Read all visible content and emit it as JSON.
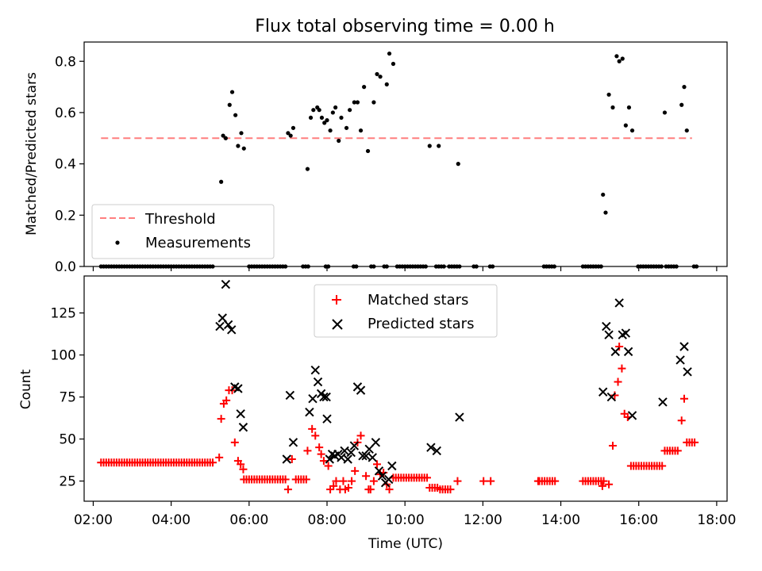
{
  "chart_data": [
    {
      "type": "scatter",
      "title": "Flux total observing time = 0.00 h",
      "xlabel": "",
      "ylabel": "Matched/Predicted stars",
      "xlim": [
        "01:46",
        "18:16"
      ],
      "ylim": [
        0,
        0.875
      ],
      "yticks": [
        0.0,
        0.2,
        0.4,
        0.6,
        0.8
      ],
      "ytick_labels": [
        "0.0",
        "0.2",
        "0.4",
        "0.6",
        "0.8"
      ],
      "legend": {
        "placement": "lower-left",
        "entries": [
          "Threshold",
          "Measurements"
        ]
      },
      "threshold": {
        "name": "Threshold",
        "y": 0.5,
        "x_start": "02:12",
        "x_end": "17:22",
        "color": "#ff7f7f"
      },
      "measurements": {
        "name": "Measurements",
        "color": "#000000",
        "points": [
          [
            "05:17",
            0.33
          ],
          [
            "05:20",
            0.51
          ],
          [
            "05:24",
            0.5
          ],
          [
            "05:30",
            0.63
          ],
          [
            "05:34",
            0.68
          ],
          [
            "05:39",
            0.59
          ],
          [
            "05:43",
            0.47
          ],
          [
            "05:48",
            0.52
          ],
          [
            "05:52",
            0.46
          ],
          [
            "07:00",
            0.52
          ],
          [
            "07:04",
            0.51
          ],
          [
            "07:08",
            0.54
          ],
          [
            "07:30",
            0.38
          ],
          [
            "07:35",
            0.58
          ],
          [
            "07:39",
            0.61
          ],
          [
            "07:45",
            0.62
          ],
          [
            "07:48",
            0.61
          ],
          [
            "07:52",
            0.58
          ],
          [
            "07:56",
            0.56
          ],
          [
            "08:00",
            0.57
          ],
          [
            "08:05",
            0.53
          ],
          [
            "08:09",
            0.6
          ],
          [
            "08:13",
            0.62
          ],
          [
            "08:18",
            0.49
          ],
          [
            "08:22",
            0.58
          ],
          [
            "08:30",
            0.54
          ],
          [
            "08:35",
            0.61
          ],
          [
            "08:42",
            0.64
          ],
          [
            "08:47",
            0.64
          ],
          [
            "08:52",
            0.53
          ],
          [
            "08:57",
            0.7
          ],
          [
            "09:03",
            0.45
          ],
          [
            "09:12",
            0.64
          ],
          [
            "09:17",
            0.75
          ],
          [
            "09:22",
            0.74
          ],
          [
            "09:32",
            0.71
          ],
          [
            "09:36",
            0.83
          ],
          [
            "09:42",
            0.79
          ],
          [
            "10:38",
            0.47
          ],
          [
            "10:52",
            0.47
          ],
          [
            "11:22",
            0.4
          ],
          [
            "15:05",
            0.28
          ],
          [
            "15:09",
            0.21
          ],
          [
            "15:14",
            0.67
          ],
          [
            "15:20",
            0.62
          ],
          [
            "15:26",
            0.82
          ],
          [
            "15:30",
            0.8
          ],
          [
            "15:35",
            0.81
          ],
          [
            "15:40",
            0.55
          ],
          [
            "15:45",
            0.62
          ],
          [
            "15:50",
            0.53
          ],
          [
            "16:40",
            0.6
          ],
          [
            "17:06",
            0.63
          ],
          [
            "17:10",
            0.7
          ],
          [
            "17:14",
            0.53
          ]
        ],
        "zero_ranges": [
          [
            "02:12",
            "05:05"
          ],
          [
            "06:00",
            "06:58"
          ],
          [
            "07:23",
            "07:31"
          ],
          [
            "07:58",
            "08:05"
          ],
          [
            "08:41",
            "08:45"
          ],
          [
            "09:08",
            "09:12"
          ],
          [
            "09:28",
            "09:32"
          ],
          [
            "09:48",
            "10:34"
          ],
          [
            "10:48",
            "11:02"
          ],
          [
            "11:08",
            "11:26"
          ],
          [
            "11:46",
            "11:50"
          ],
          [
            "12:11",
            "12:15"
          ],
          [
            "13:34",
            "13:52"
          ],
          [
            "14:34",
            "15:03"
          ],
          [
            "15:59",
            "16:38"
          ],
          [
            "16:42",
            "16:58"
          ],
          [
            "17:25",
            "17:29"
          ]
        ]
      }
    },
    {
      "type": "scatter",
      "title": "",
      "xlabel": "Time (UTC)",
      "ylabel": "Count",
      "xlim": [
        "01:46",
        "18:16"
      ],
      "ylim": [
        13,
        147
      ],
      "yticks": [
        25,
        50,
        75,
        100,
        125
      ],
      "ytick_labels": [
        "25",
        "50",
        "75",
        "100",
        "125"
      ],
      "xticks": [
        "02:00",
        "04:00",
        "06:00",
        "08:00",
        "10:00",
        "12:00",
        "14:00",
        "16:00",
        "18:00"
      ],
      "legend": {
        "placement": "top-center",
        "entries": [
          "Matched stars",
          "Predicted stars"
        ]
      },
      "series": [
        {
          "name": "Matched stars",
          "marker": "+",
          "color": "#ff0000",
          "points": [
            [
              "05:14",
              39
            ],
            [
              "05:17",
              62
            ],
            [
              "05:21",
              71
            ],
            [
              "05:25",
              73
            ],
            [
              "05:29",
              79
            ],
            [
              "05:34",
              79
            ],
            [
              "05:38",
              48
            ],
            [
              "05:43",
              37
            ],
            [
              "05:47",
              35
            ],
            [
              "05:51",
              32
            ],
            [
              "07:00",
              20
            ],
            [
              "07:06",
              38
            ],
            [
              "07:30",
              43
            ],
            [
              "07:37",
              56
            ],
            [
              "07:42",
              52
            ],
            [
              "07:48",
              45
            ],
            [
              "07:51",
              41
            ],
            [
              "07:55",
              37
            ],
            [
              "08:02",
              34
            ],
            [
              "08:05",
              20
            ],
            [
              "08:10",
              22
            ],
            [
              "08:14",
              25
            ],
            [
              "08:20",
              20
            ],
            [
              "08:25",
              25
            ],
            [
              "08:28",
              20
            ],
            [
              "08:33",
              21
            ],
            [
              "08:38",
              25
            ],
            [
              "08:43",
              31
            ],
            [
              "08:47",
              48
            ],
            [
              "08:52",
              52
            ],
            [
              "09:00",
              28
            ],
            [
              "09:04",
              20
            ],
            [
              "09:07",
              20
            ],
            [
              "09:12",
              25
            ],
            [
              "09:17",
              35
            ],
            [
              "09:22",
              29
            ],
            [
              "09:27",
              30
            ],
            [
              "09:32",
              23
            ],
            [
              "09:36",
              20
            ],
            [
              "11:21",
              25
            ],
            [
              "12:01",
              25
            ],
            [
              "12:12",
              25
            ],
            [
              "13:25",
              25
            ],
            [
              "15:04",
              22
            ],
            [
              "15:14",
              23
            ],
            [
              "15:20",
              46
            ],
            [
              "15:23",
              76
            ],
            [
              "15:28",
              84
            ],
            [
              "15:30",
              105
            ],
            [
              "15:34",
              92
            ],
            [
              "15:38",
              65
            ],
            [
              "15:43",
              63
            ],
            [
              "17:06",
              61
            ],
            [
              "17:10",
              74
            ]
          ],
          "runs": [
            {
              "from": "02:12",
              "to": "05:05",
              "y": 36
            },
            {
              "from": "05:52",
              "to": "06:58",
              "y": 26
            },
            {
              "from": "07:12",
              "to": "07:30",
              "y": 26
            },
            {
              "from": "09:42",
              "to": "10:34",
              "y": 27
            },
            {
              "from": "10:38",
              "to": "10:50",
              "y": 21
            },
            {
              "from": "10:54",
              "to": "11:12",
              "y": 20
            },
            {
              "from": "13:27",
              "to": "13:52",
              "y": 25
            },
            {
              "from": "14:34",
              "to": "15:08",
              "y": 25
            },
            {
              "from": "15:48",
              "to": "16:36",
              "y": 34
            },
            {
              "from": "16:40",
              "to": "17:02",
              "y": 43
            },
            {
              "from": "17:14",
              "to": "17:26",
              "y": 48
            }
          ]
        },
        {
          "name": "Predicted stars",
          "marker": "x",
          "color": "#000000",
          "points": [
            [
              "05:15",
              117
            ],
            [
              "05:19",
              122
            ],
            [
              "05:24",
              142
            ],
            [
              "05:28",
              118
            ],
            [
              "05:33",
              115
            ],
            [
              "05:38",
              81
            ],
            [
              "05:43",
              80
            ],
            [
              "05:47",
              65
            ],
            [
              "05:51",
              57
            ],
            [
              "06:58",
              38
            ],
            [
              "07:03",
              76
            ],
            [
              "07:08",
              48
            ],
            [
              "07:33",
              66
            ],
            [
              "07:38",
              74
            ],
            [
              "07:42",
              91
            ],
            [
              "07:46",
              84
            ],
            [
              "07:51",
              77
            ],
            [
              "07:55",
              75
            ],
            [
              "07:59",
              75
            ],
            [
              "08:00",
              62
            ],
            [
              "08:04",
              38
            ],
            [
              "08:08",
              41
            ],
            [
              "08:12",
              40
            ],
            [
              "08:17",
              41
            ],
            [
              "08:22",
              39
            ],
            [
              "08:27",
              43
            ],
            [
              "08:32",
              38
            ],
            [
              "08:37",
              42
            ],
            [
              "08:42",
              46
            ],
            [
              "08:47",
              81
            ],
            [
              "08:52",
              79
            ],
            [
              "08:55",
              40
            ],
            [
              "09:00",
              40
            ],
            [
              "09:05",
              44
            ],
            [
              "09:10",
              39
            ],
            [
              "09:15",
              48
            ],
            [
              "09:20",
              31
            ],
            [
              "09:25",
              28
            ],
            [
              "09:30",
              24
            ],
            [
              "09:35",
              26
            ],
            [
              "09:40",
              34
            ],
            [
              "10:40",
              45
            ],
            [
              "10:49",
              43
            ],
            [
              "11:24",
              63
            ],
            [
              "15:05",
              78
            ],
            [
              "15:10",
              117
            ],
            [
              "15:14",
              112
            ],
            [
              "15:18",
              75
            ],
            [
              "15:24",
              102
            ],
            [
              "15:30",
              131
            ],
            [
              "15:35",
              112
            ],
            [
              "15:40",
              113
            ],
            [
              "15:44",
              102
            ],
            [
              "15:50",
              64
            ],
            [
              "16:37",
              72
            ],
            [
              "17:04",
              97
            ],
            [
              "17:10",
              105
            ],
            [
              "17:15",
              90
            ]
          ]
        }
      ]
    }
  ]
}
